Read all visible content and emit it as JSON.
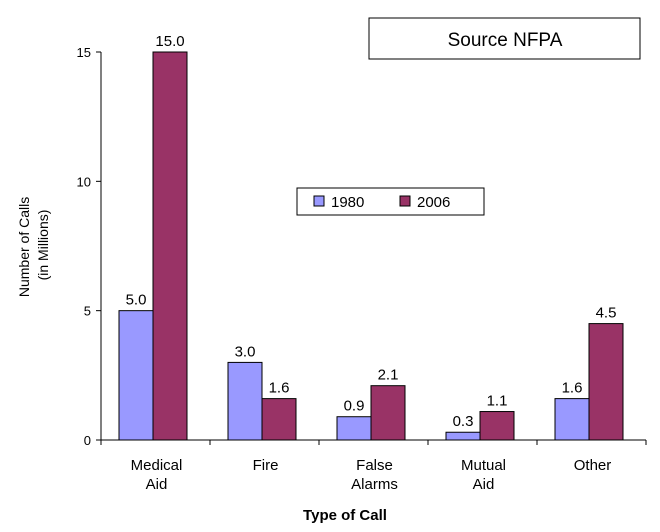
{
  "source_note": "Source NFPA",
  "chart_data": {
    "type": "bar",
    "title": "",
    "xlabel": "Type of Call",
    "ylabel_lines": [
      "Number of Calls",
      "(in Millions)"
    ],
    "categories": [
      [
        "Medical",
        "Aid"
      ],
      [
        "Fire"
      ],
      [
        "False",
        "Alarms"
      ],
      [
        "Mutual",
        "Aid"
      ],
      [
        "Other"
      ]
    ],
    "series": [
      {
        "name": "1980",
        "color": "#9999ff",
        "values": [
          5.0,
          3.0,
          0.9,
          0.3,
          1.6
        ],
        "labels": [
          "5.0",
          "3.0",
          "0.9",
          "0.3",
          "1.6"
        ]
      },
      {
        "name": "2006",
        "color": "#993366",
        "values": [
          15.0,
          1.6,
          2.1,
          1.1,
          4.5
        ],
        "labels": [
          "15.0",
          "1.6",
          "2.1",
          "1.1",
          "4.5"
        ]
      }
    ],
    "ylim": [
      0,
      15
    ],
    "yticks": [
      0,
      5,
      10,
      15
    ],
    "grid": false,
    "legend_position": "center-right"
  }
}
